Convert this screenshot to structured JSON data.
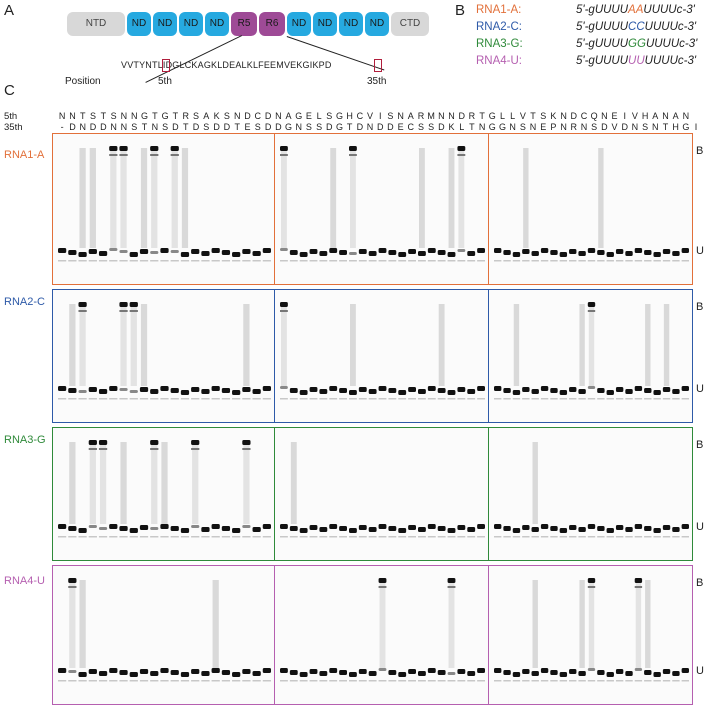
{
  "panel_labels": {
    "a": "A",
    "b": "B",
    "c": "C"
  },
  "domains": [
    {
      "label": "NTD",
      "color": "#d8d8d8"
    },
    {
      "label": "ND",
      "color": "#26a9e0"
    },
    {
      "label": "ND",
      "color": "#26a9e0"
    },
    {
      "label": "ND",
      "color": "#26a9e0"
    },
    {
      "label": "ND",
      "color": "#26a9e0"
    },
    {
      "label": "R5",
      "color": "#9e4a96"
    },
    {
      "label": "R6",
      "color": "#9e4a96"
    },
    {
      "label": "ND",
      "color": "#26a9e0"
    },
    {
      "label": "ND",
      "color": "#26a9e0"
    },
    {
      "label": "ND",
      "color": "#26a9e0"
    },
    {
      "label": "ND",
      "color": "#26a9e0"
    },
    {
      "label": "CTD",
      "color": "#d8d8d8"
    }
  ],
  "motif_sequence": "VVTYNTLIDGLCKAGKLDEALKLFEEMVEKGIKPD",
  "position_label": "Position",
  "pos5_label": "5th",
  "pos35_label": "35th",
  "rnas": [
    {
      "name": "RNA1-A:",
      "prefix": "5'-gUUUU",
      "var": "AA",
      "suffix": "UUUUc-3'",
      "color": "#e2703a"
    },
    {
      "name": "RNA2-C:",
      "prefix": "5'-gUUUU",
      "var": "CC",
      "suffix": "UUUUc-3'",
      "color": "#2e5aa8"
    },
    {
      "name": "RNA3-G:",
      "prefix": "5'-gUUUU",
      "var": "GG",
      "suffix": "UUUUc-3'",
      "color": "#2f8a3a"
    },
    {
      "name": "RNA4-U:",
      "prefix": "5'-gUUUU",
      "var": "UU",
      "suffix": "UUUUc-3'",
      "color": "#b55fb0"
    }
  ],
  "row5_label": "5th",
  "row35_label": "35th",
  "residues_5th": "NNTSTSNNGTGTRSAKSNDCDNAGELSGHCVISNARMNNDRTGLLVTSKNDCQNEIVHANAN",
  "residues_35th": "-DNDDNNSTNSDTDSDDTESDDGNSSDGTDNDDECSSDKLTNGGNSNEPNRNSDVDNSNTHGI",
  "gels": [
    {
      "label": "RNA1-A",
      "color": "#e2703a"
    },
    {
      "label": "RNA2-C",
      "color": "#2e5aa8"
    },
    {
      "label": "RNA3-G",
      "color": "#2f8a3a"
    },
    {
      "label": "RNA4-U",
      "color": "#b55fb0"
    }
  ],
  "bound_label": "B",
  "unbound_label": "U"
}
